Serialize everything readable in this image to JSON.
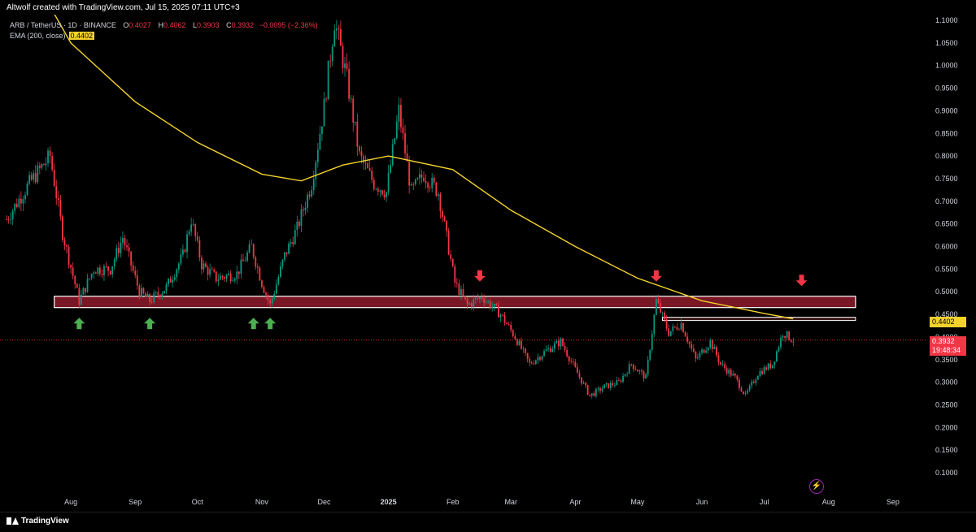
{
  "header": {
    "created_by": "Altwolf created with TradingView.com, Jul 15, 2025 07:11 UTC+3"
  },
  "legend": {
    "symbol": "ARB / TetherUS · 1D · BINANCE",
    "open_label": "O",
    "open": "0.4027",
    "high_label": "H",
    "high": "0.4062",
    "low_label": "L",
    "low": "0.3903",
    "close_label": "C",
    "close": "0.3932",
    "change": "−0.0095 (−2.36%)",
    "ema_label": "EMA (200, close)",
    "ema_value": "0.4402"
  },
  "price_labels": {
    "ema": "0.4402",
    "last": "0.3932",
    "countdown": "19:48:34"
  },
  "footer": {
    "brand": "TradingView"
  },
  "colors": {
    "background": "#000000",
    "up": "#089981",
    "down": "#f23645",
    "ema": "#f2d22b",
    "zone": "#8e1b2a",
    "arrow_up": "#4caf50",
    "arrow_down": "#f23645"
  },
  "chart_data": {
    "type": "candlestick",
    "ylim": [
      0.07,
      1.12
    ],
    "y_ticks": [
      "1.1000",
      "1.0500",
      "1.0000",
      "0.9500",
      "0.9000",
      "0.8500",
      "0.8000",
      "0.7500",
      "0.7000",
      "0.6500",
      "0.6000",
      "0.5500",
      "0.5000",
      "0.4500",
      "0.4000",
      "0.3500",
      "0.3000",
      "0.2500",
      "0.2000",
      "0.1500",
      "0.1000"
    ],
    "x_ticks": [
      "Aug",
      "Sep",
      "Oct",
      "Nov",
      "Dec",
      "2025",
      "Feb",
      "Mar",
      "Apr",
      "May",
      "Jun",
      "Jul",
      "Aug",
      "Sep"
    ],
    "price_path": [
      {
        "date": "2024-07-01",
        "v": 0.66
      },
      {
        "date": "2024-07-12",
        "v": 0.74
      },
      {
        "date": "2024-07-22",
        "v": 0.8
      },
      {
        "date": "2024-07-28",
        "v": 0.63
      },
      {
        "date": "2024-08-05",
        "v": 0.48
      },
      {
        "date": "2024-08-12",
        "v": 0.55
      },
      {
        "date": "2024-08-20",
        "v": 0.55
      },
      {
        "date": "2024-08-26",
        "v": 0.62
      },
      {
        "date": "2024-09-03",
        "v": 0.5
      },
      {
        "date": "2024-09-08",
        "v": 0.48
      },
      {
        "date": "2024-09-16",
        "v": 0.51
      },
      {
        "date": "2024-09-24",
        "v": 0.58
      },
      {
        "date": "2024-09-28",
        "v": 0.66
      },
      {
        "date": "2024-10-03",
        "v": 0.56
      },
      {
        "date": "2024-10-10",
        "v": 0.53
      },
      {
        "date": "2024-10-20",
        "v": 0.54
      },
      {
        "date": "2024-10-27",
        "v": 0.6
      },
      {
        "date": "2024-11-01",
        "v": 0.52
      },
      {
        "date": "2024-11-05",
        "v": 0.47
      },
      {
        "date": "2024-11-12",
        "v": 0.58
      },
      {
        "date": "2024-11-18",
        "v": 0.64
      },
      {
        "date": "2024-11-25",
        "v": 0.74
      },
      {
        "date": "2024-12-01",
        "v": 0.91
      },
      {
        "date": "2024-12-06",
        "v": 1.1
      },
      {
        "date": "2024-12-12",
        "v": 0.97
      },
      {
        "date": "2024-12-18",
        "v": 0.8
      },
      {
        "date": "2024-12-25",
        "v": 0.74
      },
      {
        "date": "2024-12-31",
        "v": 0.72
      },
      {
        "date": "2025-01-06",
        "v": 0.9
      },
      {
        "date": "2025-01-12",
        "v": 0.72
      },
      {
        "date": "2025-01-18",
        "v": 0.76
      },
      {
        "date": "2025-01-25",
        "v": 0.72
      },
      {
        "date": "2025-02-02",
        "v": 0.52
      },
      {
        "date": "2025-02-08",
        "v": 0.47
      },
      {
        "date": "2025-02-15",
        "v": 0.49
      },
      {
        "date": "2025-02-24",
        "v": 0.45
      },
      {
        "date": "2025-03-03",
        "v": 0.4
      },
      {
        "date": "2025-03-10",
        "v": 0.34
      },
      {
        "date": "2025-03-18",
        "v": 0.37
      },
      {
        "date": "2025-03-25",
        "v": 0.39
      },
      {
        "date": "2025-04-02",
        "v": 0.32
      },
      {
        "date": "2025-04-08",
        "v": 0.27
      },
      {
        "date": "2025-04-15",
        "v": 0.29
      },
      {
        "date": "2025-04-22",
        "v": 0.3
      },
      {
        "date": "2025-04-28",
        "v": 0.34
      },
      {
        "date": "2025-05-05",
        "v": 0.31
      },
      {
        "date": "2025-05-10",
        "v": 0.48
      },
      {
        "date": "2025-05-16",
        "v": 0.41
      },
      {
        "date": "2025-05-22",
        "v": 0.43
      },
      {
        "date": "2025-05-29",
        "v": 0.35
      },
      {
        "date": "2025-06-05",
        "v": 0.39
      },
      {
        "date": "2025-06-10",
        "v": 0.34
      },
      {
        "date": "2025-06-17",
        "v": 0.31
      },
      {
        "date": "2025-06-22",
        "v": 0.27
      },
      {
        "date": "2025-06-28",
        "v": 0.32
      },
      {
        "date": "2025-07-05",
        "v": 0.34
      },
      {
        "date": "2025-07-10",
        "v": 0.41
      },
      {
        "date": "2025-07-15",
        "v": 0.393
      }
    ],
    "ema200": [
      {
        "date": "2024-07-01",
        "v": 1.3
      },
      {
        "date": "2024-08-01",
        "v": 1.05
      },
      {
        "date": "2024-09-01",
        "v": 0.92
      },
      {
        "date": "2024-10-01",
        "v": 0.83
      },
      {
        "date": "2024-11-01",
        "v": 0.76
      },
      {
        "date": "2024-11-20",
        "v": 0.745
      },
      {
        "date": "2024-12-10",
        "v": 0.78
      },
      {
        "date": "2025-01-01",
        "v": 0.8
      },
      {
        "date": "2025-02-01",
        "v": 0.77
      },
      {
        "date": "2025-03-01",
        "v": 0.68
      },
      {
        "date": "2025-04-01",
        "v": 0.6
      },
      {
        "date": "2025-05-01",
        "v": 0.53
      },
      {
        "date": "2025-06-01",
        "v": 0.48
      },
      {
        "date": "2025-07-01",
        "v": 0.452
      },
      {
        "date": "2025-07-15",
        "v": 0.4402
      }
    ],
    "support_zone": {
      "from": "2024-07-24",
      "to": "2025-08-14",
      "low": 0.465,
      "high": 0.49
    },
    "resistance_line": {
      "from": "2025-05-13",
      "to": "2025-08-14",
      "value": 0.44
    },
    "arrows": [
      {
        "date": "2024-08-05",
        "dir": "up",
        "v": 0.43
      },
      {
        "date": "2024-09-08",
        "dir": "up",
        "v": 0.43
      },
      {
        "date": "2024-10-28",
        "dir": "up",
        "v": 0.43
      },
      {
        "date": "2024-11-05",
        "dir": "up",
        "v": 0.43
      },
      {
        "date": "2025-02-14",
        "dir": "down",
        "v": 0.535
      },
      {
        "date": "2025-05-10",
        "dir": "down",
        "v": 0.535
      },
      {
        "date": "2025-07-19",
        "dir": "down",
        "v": 0.525
      }
    ],
    "last_price": 0.3932,
    "grid": false
  }
}
